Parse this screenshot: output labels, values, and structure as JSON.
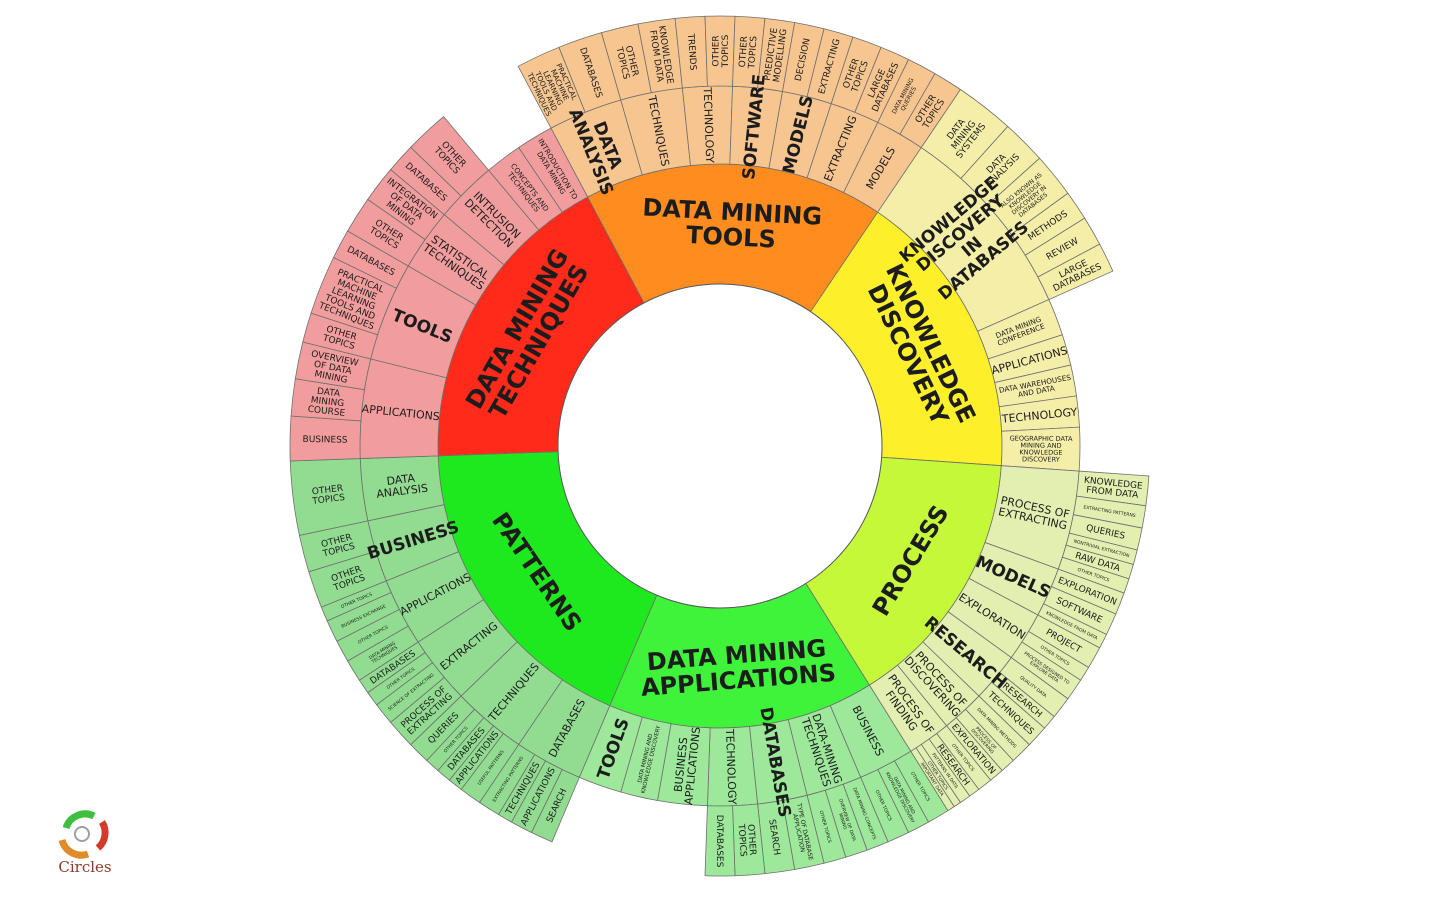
{
  "logo": {
    "text": "Circles",
    "icon": "circles-logo-icon"
  },
  "center": {
    "cx": 720,
    "cy": 446
  },
  "rings": {
    "core": [
      0,
      162
    ],
    "inner": [
      162,
      282
    ],
    "middle": [
      282,
      360
    ],
    "outer": [
      360,
      430
    ]
  },
  "categories": [
    {
      "id": "data-mining-tools",
      "label": "DATA MINING TOOLS",
      "color": "#ff8c1e",
      "lightColor": "#f7c690",
      "start": 332,
      "end": 34,
      "middle": [
        {
          "label": "DATA ANALYSIS",
          "start": 332,
          "end": 344,
          "big": true,
          "outer": [
            {
              "label": "PRACTICAL MACHINE LEARNING TOOLS AND TECHNIQUES",
              "start": 332,
              "end": 338
            },
            {
              "label": "DATABASES",
              "start": 338,
              "end": 344
            }
          ]
        },
        {
          "label": "TECHNIQUES",
          "start": 344,
          "end": 354,
          "outer": [
            {
              "label": "OTHER TOPICS",
              "start": 344,
              "end": 349
            },
            {
              "label": "KNOWLEDGE FROM DATA",
              "start": 349,
              "end": 354
            }
          ]
        },
        {
          "label": "TECHNOLOGY",
          "start": 354,
          "end": 2,
          "outer": [
            {
              "label": "TRENDS",
              "start": 354,
              "end": 358
            },
            {
              "label": "OTHER TOPICS",
              "start": 358,
              "end": 2
            }
          ]
        },
        {
          "label": "SOFTWARE",
          "start": 2,
          "end": 10,
          "big": true,
          "outer": [
            {
              "label": "OTHER TOPICS",
              "start": 2,
              "end": 6
            },
            {
              "label": "PREDICTIVE MODELLING",
              "start": 6,
              "end": 10
            }
          ]
        },
        {
          "label": "MODELS",
          "start": 10,
          "end": 18,
          "big": true,
          "outer": [
            {
              "label": "DECISION",
              "start": 10,
              "end": 14
            },
            {
              "label": "EXTRACTING",
              "start": 14,
              "end": 18
            }
          ]
        },
        {
          "label": "EXTRACTING",
          "start": 18,
          "end": 26,
          "outer": [
            {
              "label": "OTHER TOPICS",
              "start": 18,
              "end": 22
            },
            {
              "label": "LARGE DATABASES",
              "start": 22,
              "end": 26
            }
          ]
        },
        {
          "label": "MODELS",
          "start": 26,
          "end": 34,
          "outer": [
            {
              "label": "DATA MINING QUERIES",
              "start": 26,
              "end": 30
            },
            {
              "label": "OTHER TOPICS",
              "start": 30,
              "end": 34
            }
          ]
        }
      ]
    },
    {
      "id": "knowledge-discovery",
      "label": "KNOWLEDGE DISCOVERY",
      "color": "#fdf02a",
      "lightColor": "#f4eea8",
      "start": 34,
      "end": 94,
      "middle": [
        {
          "label": "KNOWLEDGE DISCOVERY IN DATABASES",
          "start": 34,
          "end": 66,
          "big": true,
          "outer": [
            {
              "label": "DATA MINING SYSTEMS",
              "start": 34,
              "end": 42
            },
            {
              "label": "DATA ANALYSIS",
              "start": 42,
              "end": 48
            },
            {
              "label": "ALSO KNOWN AS KNOWLEDGE DISCOVERY IN DATABASES",
              "start": 48,
              "end": 54
            },
            {
              "label": "METHODS",
              "start": 54,
              "end": 58
            },
            {
              "label": "REVIEW",
              "start": 58,
              "end": 62
            },
            {
              "label": "LARGE DATABASES",
              "start": 62,
              "end": 66
            }
          ]
        },
        {
          "label": "DATA MINING CONFERENCE",
          "start": 66,
          "end": 72
        },
        {
          "label": "APPLICATIONS",
          "start": 72,
          "end": 77
        },
        {
          "label": "DATA WAREHOUSES AND DATA",
          "start": 77,
          "end": 82
        },
        {
          "label": "TECHNOLOGY",
          "start": 82,
          "end": 87
        },
        {
          "label": "GEOGRAPHIC DATA MINING AND KNOWLEDGE DISCOVERY",
          "start": 87,
          "end": 94
        }
      ]
    },
    {
      "id": "process",
      "label": "PROCESS",
      "color": "#c6f83a",
      "lightColor": "#e2efb0",
      "start": 94,
      "end": 148,
      "middle": [
        {
          "label": "PROCESS OF EXTRACTING",
          "start": 94,
          "end": 110,
          "outer": [
            {
              "label": "KNOWLEDGE FROM DATA",
              "start": 94,
              "end": 98
            },
            {
              "label": "EXTRACTING PATTERNS",
              "start": 98,
              "end": 101
            },
            {
              "label": "QUERIES",
              "start": 101,
              "end": 104
            },
            {
              "label": "NONTRIVIAL EXTRACTION",
              "start": 104,
              "end": 106
            },
            {
              "label": "RAW DATA",
              "start": 106,
              "end": 108
            },
            {
              "label": "OTHER TOPICS",
              "start": 108,
              "end": 110
            }
          ]
        },
        {
          "label": "MODELS",
          "start": 110,
          "end": 118,
          "big": true,
          "outer": [
            {
              "label": "EXPLORATION",
              "start": 110,
              "end": 113
            },
            {
              "label": "SOFTWARE",
              "start": 113,
              "end": 116
            },
            {
              "label": "KNOWLEDGE FROM DATA",
              "start": 116,
              "end": 118
            }
          ]
        },
        {
          "label": "EXPLORATION",
          "start": 118,
          "end": 126,
          "outer": [
            {
              "label": "PROJECT",
              "start": 118,
              "end": 121
            },
            {
              "label": "OTHER TOPICS",
              "start": 121,
              "end": 123
            },
            {
              "label": "PROCESS DESIGNED TO EXPLORE DATA",
              "start": 123,
              "end": 126
            }
          ]
        },
        {
          "label": "RESEARCH",
          "start": 126,
          "end": 134,
          "big": true,
          "outer": [
            {
              "label": "QUALITY DATA",
              "start": 126,
              "end": 129
            },
            {
              "label": "RESEARCH",
              "start": 129,
              "end": 131
            },
            {
              "label": "TECHNIQUES",
              "start": 131,
              "end": 134
            }
          ]
        },
        {
          "label": "PROCESS OF DISCOVERING",
          "start": 134,
          "end": 141,
          "outer": [
            {
              "label": "DATA MINING METHODS",
              "start": 134,
              "end": 137
            },
            {
              "label": "PROCESS OF DISCOVERING",
              "start": 137,
              "end": 139
            },
            {
              "label": "EXPLORATION",
              "start": 139,
              "end": 141
            }
          ]
        },
        {
          "label": "PROCESS OF FINDING",
          "start": 141,
          "end": 148,
          "outer": [
            {
              "label": "OTHER TOPICS",
              "start": 141,
              "end": 143
            },
            {
              "label": "RESEARCH",
              "start": 143,
              "end": 144.5
            },
            {
              "label": "PATTERNS IN DATA",
              "start": 144.5,
              "end": 146
            },
            {
              "label": "OTHER TOPICS",
              "start": 146,
              "end": 147
            },
            {
              "label": "IMPORTANT DATA",
              "start": 147,
              "end": 148
            }
          ]
        }
      ]
    },
    {
      "id": "data-mining-applications",
      "label": "DATA MINING APPLICATIONS",
      "color": "#3ff23a",
      "lightColor": "#9de89a",
      "start": 148,
      "end": 203,
      "middle": [
        {
          "label": "BUSINESS",
          "start": 148,
          "end": 157,
          "outer": [
            {
              "label": "OTHER TOPICS",
              "start": 148,
              "end": 151
            },
            {
              "label": "DATA MINING AND KNOWLEDGE DISCOVERY",
              "start": 151,
              "end": 154
            },
            {
              "label": "OTHER TOPICS",
              "start": 154,
              "end": 157
            }
          ]
        },
        {
          "label": "DATA-MINING TECHNIQUES",
          "start": 157,
          "end": 166,
          "outer": [
            {
              "label": "DATA MINING CONCEPTS",
              "start": 157,
              "end": 160
            },
            {
              "label": "OVERVIEW OF DATA MINING",
              "start": 160,
              "end": 163
            },
            {
              "label": "OTHER TOPICS",
              "start": 163,
              "end": 166
            }
          ]
        },
        {
          "label": "DATABASES",
          "start": 166,
          "end": 174,
          "big": true,
          "outer": [
            {
              "label": "TYPE OF DATABASE APPLICATION",
              "start": 166,
              "end": 170
            },
            {
              "label": "SEARCH",
              "start": 170,
              "end": 174
            }
          ]
        },
        {
          "label": "TECHNOLOGY",
          "start": 174,
          "end": 182,
          "outer": [
            {
              "label": "OTHER TOPICS",
              "start": 174,
              "end": 178
            },
            {
              "label": "DATABASES",
              "start": 178,
              "end": 182
            }
          ]
        },
        {
          "label": "BUSINESS APPLICATIONS",
          "start": 182,
          "end": 190
        },
        {
          "label": "DATA MINING AND KNOWLEDGE DISCOVERY",
          "start": 190,
          "end": 196
        },
        {
          "label": "TOOLS",
          "start": 196,
          "end": 203,
          "big": true
        }
      ]
    },
    {
      "id": "patterns",
      "label": "PATTERNS",
      "color": "#1ee81e",
      "lightColor": "#92dc92",
      "start": 203,
      "end": 268,
      "middle": [
        {
          "label": "DATABASES",
          "start": 203,
          "end": 214,
          "outer": [
            {
              "label": "SEARCH",
              "start": 203,
              "end": 206
            },
            {
              "label": "APPLICATIONS",
              "start": 206,
              "end": 209
            },
            {
              "label": "TECHNIQUES",
              "start": 209,
              "end": 211
            },
            {
              "label": "EXTRACTING PATTERNS",
              "start": 211,
              "end": 214
            }
          ]
        },
        {
          "label": "TECHNIQUES",
          "start": 214,
          "end": 226,
          "outer": [
            {
              "label": "USEFUL PATTERNS",
              "start": 214,
              "end": 217
            },
            {
              "label": "APPLICATIONS",
              "start": 217,
              "end": 219
            },
            {
              "label": "DATABASES",
              "start": 219,
              "end": 221
            },
            {
              "label": "OTHER TOPICS",
              "start": 221,
              "end": 223
            },
            {
              "label": "QUERIES",
              "start": 223,
              "end": 226
            }
          ]
        },
        {
          "label": "EXTRACTING",
          "start": 226,
          "end": 237,
          "outer": [
            {
              "label": "PROCESS OF EXTRACTING",
              "start": 226,
              "end": 230
            },
            {
              "label": "SCIENCE OF EXTRACTING",
              "start": 230,
              "end": 233
            },
            {
              "label": "OTHER TOPICS",
              "start": 233,
              "end": 235
            },
            {
              "label": "DATABASES",
              "start": 235,
              "end": 237
            }
          ]
        },
        {
          "label": "APPLICATIONS",
          "start": 237,
          "end": 248,
          "outer": [
            {
              "label": "DATA-MINING TECHNIQUES",
              "start": 237,
              "end": 240
            },
            {
              "label": "OTHER TOPICS",
              "start": 240,
              "end": 243
            },
            {
              "label": "BUSINESS EXCHANGE",
              "start": 243,
              "end": 246
            },
            {
              "label": "OTHER TOPICS",
              "start": 246,
              "end": 248
            }
          ]
        },
        {
          "label": "BUSINESS",
          "start": 248,
          "end": 258,
          "big": true,
          "outer": [
            {
              "label": "OTHER TOPICS",
              "start": 248,
              "end": 253
            },
            {
              "label": "OTHER TOPICS",
              "start": 253,
              "end": 258
            }
          ]
        },
        {
          "label": "DATA ANALYSIS",
          "start": 258,
          "end": 268,
          "outer": [
            {
              "label": "OTHER TOPICS",
              "start": 258,
              "end": 268
            }
          ]
        }
      ]
    },
    {
      "id": "data-mining-techniques",
      "label": "DATA MINING TECHNIQUES",
      "color": "#ff2a1a",
      "lightColor": "#f29d9d",
      "start": 268,
      "end": 332,
      "middle": [
        {
          "label": "APPLICATIONS",
          "start": 268,
          "end": 284,
          "outer": [
            {
              "label": "BUSINESS",
              "start": 268,
              "end": 274
            },
            {
              "label": "DATA MINING COURSE",
              "start": 274,
              "end": 279
            },
            {
              "label": "OVERVIEW OF DATA MINING",
              "start": 279,
              "end": 284
            }
          ]
        },
        {
          "label": "TOOLS",
          "start": 284,
          "end": 300,
          "big": true,
          "outer": [
            {
              "label": "OTHER TOPICS",
              "start": 284,
              "end": 288
            },
            {
              "label": "PRACTICAL MACHINE LEARNING TOOLS AND TECHNIQUES",
              "start": 288,
              "end": 296
            },
            {
              "label": "DATABASES",
              "start": 296,
              "end": 300
            }
          ]
        },
        {
          "label": "STATISTICAL TECHNIQUES",
          "start": 300,
          "end": 310,
          "outer": [
            {
              "label": "OTHER TOPICS",
              "start": 300,
              "end": 305
            },
            {
              "label": "INTEGRATION OF DATA MINING",
              "start": 305,
              "end": 310
            }
          ]
        },
        {
          "label": "INTRUSION DETECTION",
          "start": 310,
          "end": 320,
          "outer": [
            {
              "label": "DATABASES",
              "start": 310,
              "end": 314
            },
            {
              "label": "OTHER TOPICS",
              "start": 314,
              "end": 320
            }
          ]
        },
        {
          "label": "CONCEPTS AND TECHNIQUES",
          "start": 320,
          "end": 326
        },
        {
          "label": "INTRODUCTION TO DATA MINING",
          "start": 326,
          "end": 332
        }
      ]
    }
  ]
}
